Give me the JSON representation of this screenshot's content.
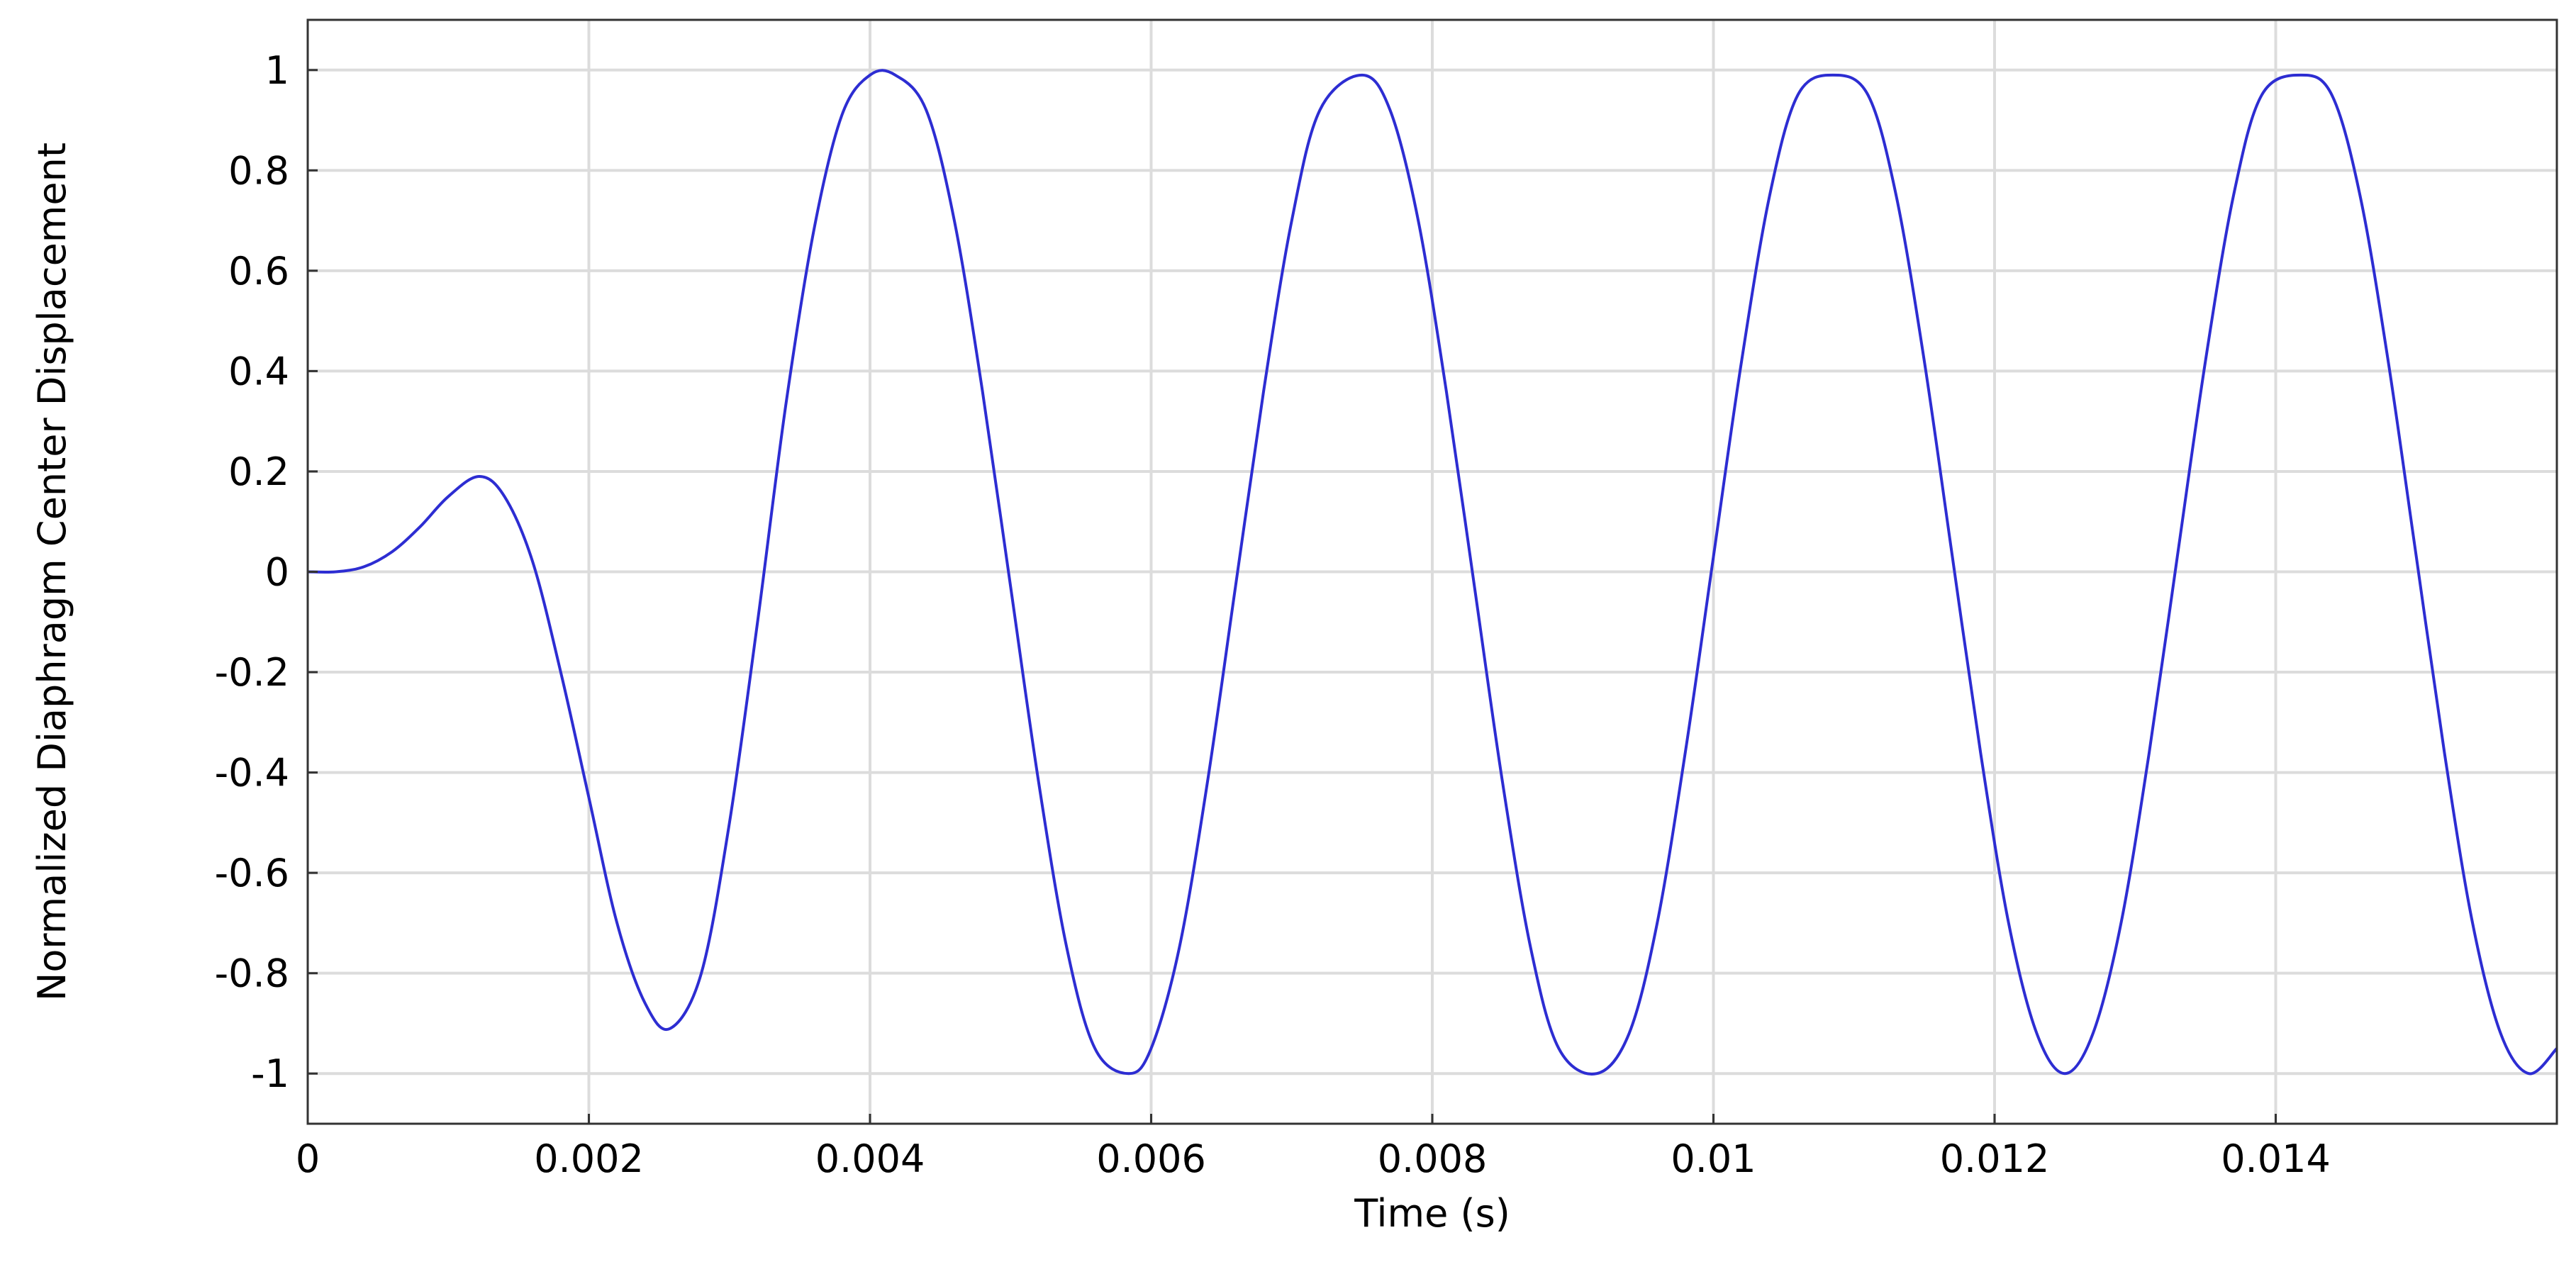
{
  "chart_data": {
    "type": "line",
    "title": "",
    "xlabel": "Time (s)",
    "ylabel": "Normalized Diaphragm Center Displacement",
    "xlim": [
      0,
      0.016
    ],
    "ylim": [
      -1.1,
      1.1
    ],
    "grid": true,
    "legend": "none",
    "colors": {
      "line": "#2d2dd2",
      "grid": "#dcdcdc",
      "frame": "#333333",
      "text": "#000000"
    },
    "x_ticks": [
      {
        "value": 0,
        "label": "0"
      },
      {
        "value": 0.002,
        "label": "0.002"
      },
      {
        "value": 0.004,
        "label": "0.004"
      },
      {
        "value": 0.006,
        "label": "0.006"
      },
      {
        "value": 0.008,
        "label": "0.008"
      },
      {
        "value": 0.01,
        "label": "0.01"
      },
      {
        "value": 0.012,
        "label": "0.012"
      },
      {
        "value": 0.014,
        "label": "0.014"
      }
    ],
    "y_ticks": [
      {
        "value": 1,
        "label": "1"
      },
      {
        "value": 0.8,
        "label": "0.8"
      },
      {
        "value": 0.6,
        "label": "0.6"
      },
      {
        "value": 0.4,
        "label": "0.4"
      },
      {
        "value": 0.2,
        "label": "0.2"
      },
      {
        "value": 0,
        "label": "0"
      },
      {
        "value": -0.2,
        "label": "-0.2"
      },
      {
        "value": -0.4,
        "label": "-0.4"
      },
      {
        "value": -0.6,
        "label": "-0.6"
      },
      {
        "value": -0.8,
        "label": "-0.8"
      },
      {
        "value": -1,
        "label": "-1"
      }
    ],
    "series": [
      {
        "x": [
          0,
          0.0002,
          0.0004,
          0.0006,
          0.0008,
          0.001,
          0.00122,
          0.0014,
          0.0016,
          0.0018,
          0.002,
          0.0022,
          0.0024,
          0.00258,
          0.0028,
          0.003,
          0.0032,
          0.0034,
          0.0036,
          0.0038,
          0.004,
          0.00418,
          0.0044,
          0.0046,
          0.0048,
          0.005,
          0.0052,
          0.0054,
          0.0056,
          0.00584,
          0.006,
          0.0062,
          0.0064,
          0.0066,
          0.0068,
          0.007,
          0.0072,
          0.0075,
          0.0077,
          0.0079,
          0.0081,
          0.0083,
          0.0085,
          0.0087,
          0.0089,
          0.00917,
          0.0094,
          0.0096,
          0.0098,
          0.01,
          0.0102,
          0.0104,
          0.0106,
          0.01085,
          0.0111,
          0.0113,
          0.0115,
          0.0117,
          0.0119,
          0.0121,
          0.0123,
          0.0125,
          0.0127,
          0.0129,
          0.0131,
          0.0133,
          0.0135,
          0.0137,
          0.0139,
          0.01418,
          0.0144,
          0.0146,
          0.0148,
          0.015,
          0.0152,
          0.0154,
          0.0156,
          0.0158,
          0.016
        ],
        "y": [
          0,
          0.0,
          0.01,
          0.04,
          0.09,
          0.15,
          0.19,
          0.15,
          0.02,
          -0.2,
          -0.45,
          -0.7,
          -0.86,
          -0.91,
          -0.8,
          -0.5,
          -0.1,
          0.33,
          0.68,
          0.91,
          0.99,
          0.99,
          0.92,
          0.7,
          0.36,
          -0.03,
          -0.42,
          -0.75,
          -0.95,
          -1.0,
          -0.95,
          -0.75,
          -0.42,
          -0.03,
          0.36,
          0.7,
          0.92,
          0.99,
          0.92,
          0.7,
          0.36,
          -0.03,
          -0.42,
          -0.75,
          -0.95,
          -1.0,
          -0.92,
          -0.7,
          -0.36,
          0.03,
          0.42,
          0.75,
          0.95,
          0.99,
          0.95,
          0.75,
          0.42,
          0.03,
          -0.36,
          -0.7,
          -0.92,
          -1.0,
          -0.92,
          -0.7,
          -0.36,
          0.03,
          0.42,
          0.75,
          0.95,
          0.99,
          0.95,
          0.75,
          0.42,
          0.03,
          -0.36,
          -0.7,
          -0.92,
          -1.0,
          -0.95
        ]
      }
    ]
  }
}
